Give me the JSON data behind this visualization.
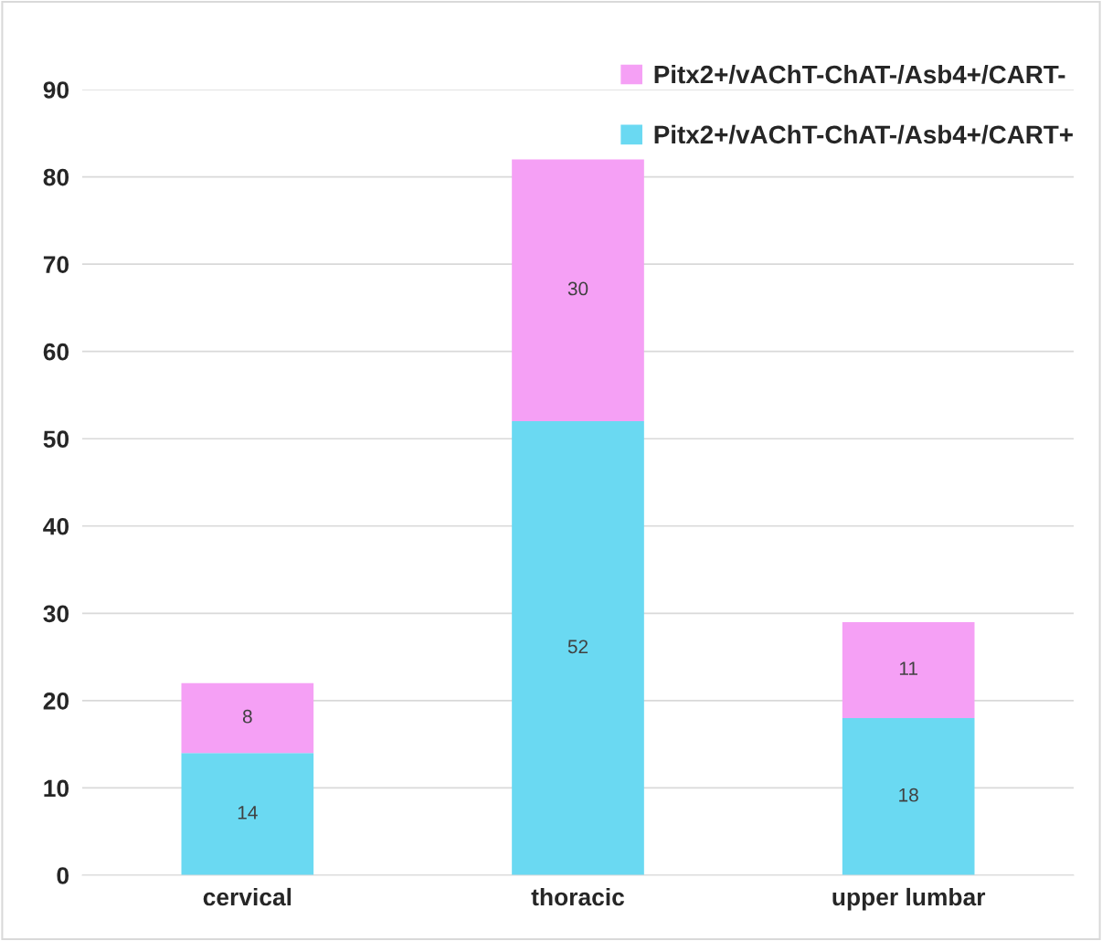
{
  "chart_data": {
    "type": "bar",
    "stacked": true,
    "categories": [
      "cervical",
      "thoracic",
      "upper lumbar"
    ],
    "series": [
      {
        "name": "Pitx2+/vAChT-ChAT-/Asb4+/CART+",
        "color": "#6ad9f2",
        "values": [
          14,
          52,
          18
        ]
      },
      {
        "name": "Pitx2+/vAChT-ChAT-/Asb4+/CART-",
        "color": "#f5a0f5",
        "values": [
          8,
          30,
          11
        ]
      }
    ],
    "ylim": [
      0,
      90
    ],
    "yticks": [
      0,
      10,
      20,
      30,
      40,
      50,
      60,
      70,
      80,
      90
    ],
    "grid": "y",
    "legend": "top right",
    "data_labels": true
  }
}
